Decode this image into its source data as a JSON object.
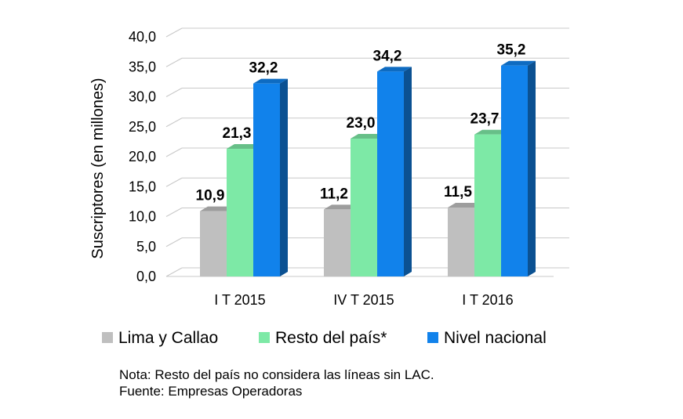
{
  "chart_data": {
    "type": "bar",
    "style": "3d-clustered-column",
    "categories": [
      "I T 2015",
      "IV T 2015",
      "I T 2016"
    ],
    "series": [
      {
        "name": "Lima y Callao",
        "color": "#bfbfbf",
        "values": [
          10.9,
          11.2,
          11.5
        ],
        "labels": [
          "10,9",
          "11,2",
          "11,5"
        ]
      },
      {
        "name": "Resto del país*",
        "color": "#7de9a6",
        "values": [
          21.3,
          23.0,
          23.7
        ],
        "labels": [
          "21,3",
          "23,0",
          "23,7"
        ]
      },
      {
        "name": "Nivel nacional",
        "color": "#1182eb",
        "values": [
          32.2,
          34.2,
          35.2
        ],
        "labels": [
          "32,2",
          "34,2",
          "35,2"
        ]
      }
    ],
    "ylabel": "Suscriptores (en millones)",
    "ylim": [
      0,
      40
    ],
    "yticks": [
      "0,0",
      "5,0",
      "10,0",
      "15,0",
      "20,0",
      "25,0",
      "30,0",
      "35,0",
      "40,0"
    ],
    "grid": true,
    "legend": "bottom"
  },
  "notes": {
    "nota": "Nota: Resto del país no considera las líneas sin LAC.",
    "fuente": "Fuente: Empresas Operadoras"
  }
}
